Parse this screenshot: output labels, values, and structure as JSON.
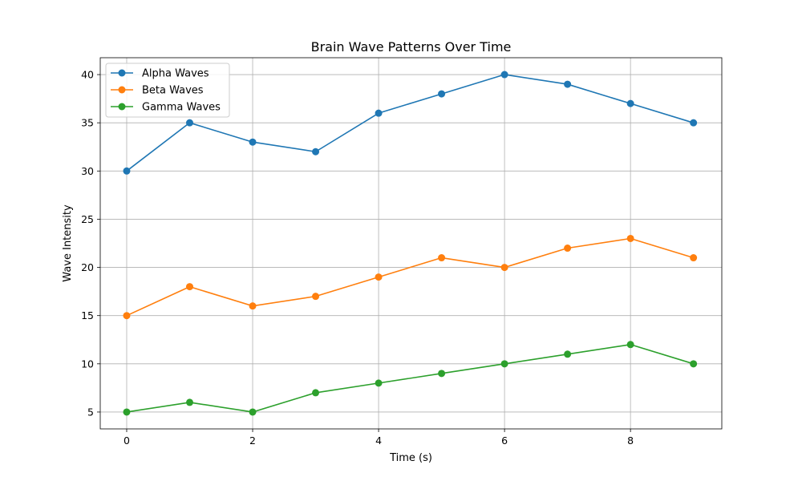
{
  "chart_data": {
    "type": "line",
    "title": "Brain Wave Patterns Over Time",
    "xlabel": "Time (s)",
    "ylabel": "Wave Intensity",
    "x": [
      0,
      1,
      2,
      3,
      4,
      5,
      6,
      7,
      8,
      9
    ],
    "xlim": [
      -0.42,
      9.45
    ],
    "ylim": [
      3.25,
      41.75
    ],
    "xticks": [
      0,
      2,
      4,
      6,
      8
    ],
    "yticks": [
      5,
      10,
      15,
      20,
      25,
      30,
      35,
      40
    ],
    "grid": true,
    "legend_position": "top-left",
    "series": [
      {
        "name": "Alpha Waves",
        "color": "#1f77b4",
        "marker": "circle",
        "values": [
          30,
          35,
          33,
          32,
          36,
          38,
          40,
          39,
          37,
          35
        ]
      },
      {
        "name": "Beta Waves",
        "color": "#ff7f0e",
        "marker": "circle",
        "values": [
          15,
          18,
          16,
          17,
          19,
          21,
          20,
          22,
          23,
          21
        ]
      },
      {
        "name": "Gamma Waves",
        "color": "#2ca02c",
        "marker": "circle",
        "values": [
          5,
          6,
          5,
          7,
          8,
          9,
          10,
          11,
          12,
          10
        ]
      }
    ]
  }
}
